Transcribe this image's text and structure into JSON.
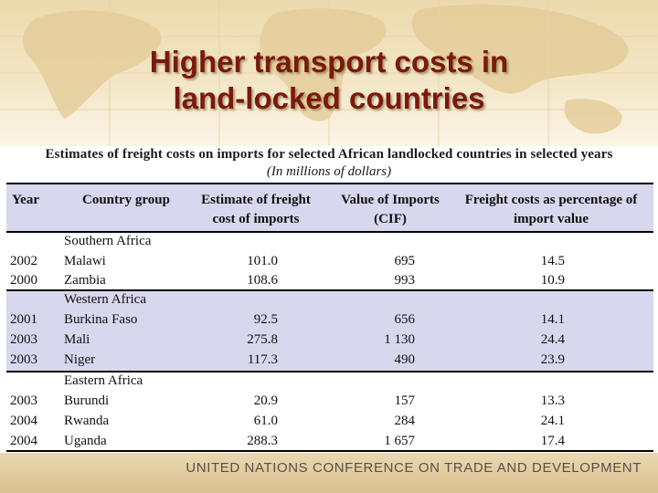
{
  "slide": {
    "title_line1": "Higher transport costs in",
    "title_line2": "land-locked countries",
    "subtitle": "Estimates of freight costs on imports for selected African landlocked countries in selected years",
    "unit_note": "(In millions of dollars)"
  },
  "table": {
    "headers": {
      "year": "Year",
      "country_group": "Country group",
      "freight_line1": "Estimate of freight",
      "freight_line2": "cost of imports",
      "imports_line1": "Value of Imports",
      "imports_line2": "(CIF)",
      "pct_line1": "Freight costs as percentage of",
      "pct_line2": "import value"
    },
    "groups": [
      {
        "name": "Southern Africa",
        "rows": [
          {
            "year": "2002",
            "country": "Malawi",
            "freight": "101.0",
            "imports": "695",
            "pct": "14.5"
          },
          {
            "year": "2000",
            "country": "Zambia",
            "freight": "108.6",
            "imports": "993",
            "pct": "10.9"
          }
        ]
      },
      {
        "name": "Western Africa",
        "rows": [
          {
            "year": "2001",
            "country": "Burkina Faso",
            "freight": "92.5",
            "imports": "656",
            "pct": "14.1"
          },
          {
            "year": "2003",
            "country": "Mali",
            "freight": "275.8",
            "imports": "1 130",
            "pct": "24.4"
          },
          {
            "year": "2003",
            "country": "Niger",
            "freight": "117.3",
            "imports": "490",
            "pct": "23.9"
          }
        ]
      },
      {
        "name": "Eastern Africa",
        "rows": [
          {
            "year": "2003",
            "country": "Burundi",
            "freight": "20.9",
            "imports": "157",
            "pct": "13.3"
          },
          {
            "year": "2004",
            "country": "Rwanda",
            "freight": "61.0",
            "imports": "284",
            "pct": "24.1"
          },
          {
            "year": "2004",
            "country": "Uganda",
            "freight": "288.3",
            "imports": "1 657",
            "pct": "17.4"
          }
        ]
      }
    ]
  },
  "footer": {
    "text": "UNITED NATIONS CONFERENCE ON TRADE AND DEVELOPMENT"
  },
  "colors": {
    "title": "#7a1a08",
    "band": "#d7d7ee",
    "footer": "#e0cc9f"
  }
}
